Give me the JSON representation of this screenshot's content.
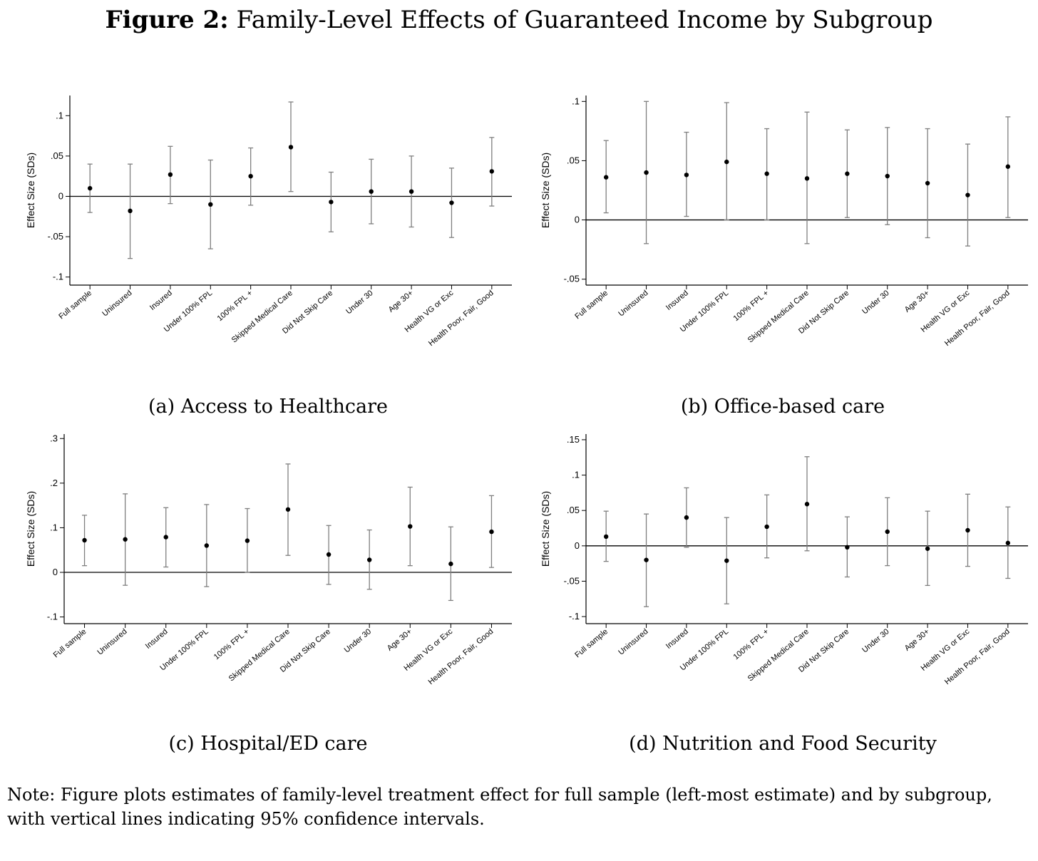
{
  "figure": {
    "title_bold": "Figure 2:",
    "title_rest": " Family-Level Effects of Guaranteed Income by Subgroup",
    "note": "Note: Figure plots estimates of family-level treatment effect for full sample (left-most estimate) and by subgroup, with vertical lines indicating 95% confidence intervals."
  },
  "colors": {
    "ci": "#7f7f7f",
    "point": "#000000",
    "axis": "#000000",
    "zero_line": "#000000"
  },
  "chart_data": [
    {
      "id": "a",
      "type": "scatter",
      "caption": "(a) Access to Healthcare",
      "ylabel": "Effect Size (SDs)",
      "ylim": [
        -0.11,
        0.125
      ],
      "yticks": [
        -0.1,
        -0.05,
        0,
        0.05,
        0.1
      ],
      "ytick_labels": [
        "-.1",
        "-.05",
        "0",
        ".05",
        ".1"
      ],
      "categories": [
        "Full sample",
        "Uninsured",
        "Insured",
        "Under 100% FPL",
        "100% FPL +",
        "Skipped Medical Care",
        "Did Not Skip Care",
        "Under 30",
        "Age 30+",
        "Health VG or Exc",
        "Health Poor, Fair, Good"
      ],
      "estimates": [
        0.01,
        -0.018,
        0.027,
        -0.01,
        0.025,
        0.061,
        -0.007,
        0.006,
        0.006,
        -0.008,
        0.031
      ],
      "ci_low": [
        -0.02,
        -0.077,
        -0.009,
        -0.065,
        -0.011,
        0.006,
        -0.044,
        -0.034,
        -0.038,
        -0.051,
        -0.012
      ],
      "ci_high": [
        0.04,
        0.04,
        0.062,
        0.045,
        0.06,
        0.117,
        0.03,
        0.046,
        0.05,
        0.035,
        0.073
      ],
      "grid": false
    },
    {
      "id": "b",
      "type": "scatter",
      "caption": "(b) Office-based care",
      "ylabel": "Effect Size (SDs)",
      "ylim": [
        -0.055,
        0.105
      ],
      "yticks": [
        -0.05,
        0,
        0.05,
        0.1
      ],
      "ytick_labels": [
        "-.05",
        "0",
        ".05",
        ".1"
      ],
      "categories": [
        "Full sample",
        "Uninsured",
        "Insured",
        "Under 100% FPL",
        "100% FPL +",
        "Skipped Medical Care",
        "Did Not Skip Care",
        "Under 30",
        "Age 30+",
        "Health VG or Exc",
        "Health Poor, Fair, Good"
      ],
      "estimates": [
        0.036,
        0.04,
        0.038,
        0.049,
        0.039,
        0.035,
        0.039,
        0.037,
        0.031,
        0.021,
        0.045
      ],
      "ci_low": [
        0.006,
        -0.02,
        0.003,
        0.0,
        0.0,
        -0.02,
        0.002,
        -0.004,
        -0.015,
        -0.022,
        0.002
      ],
      "ci_high": [
        0.067,
        0.1,
        0.074,
        0.099,
        0.077,
        0.091,
        0.076,
        0.078,
        0.077,
        0.064,
        0.087
      ],
      "grid": false
    },
    {
      "id": "c",
      "type": "scatter",
      "caption": "(c) Hospital/ED care",
      "ylabel": "Effect Size (SDs)",
      "ylim": [
        -0.115,
        0.31
      ],
      "yticks": [
        -0.1,
        0,
        0.1,
        0.2,
        0.3
      ],
      "ytick_labels": [
        "-.1",
        "0",
        ".1",
        ".2",
        ".3"
      ],
      "categories": [
        "Full sample",
        "Uninsured",
        "Insured",
        "Under 100% FPL",
        "100% FPL +",
        "Skipped Medical Care",
        "Did Not Skip Care",
        "Under 30",
        "Age 30+",
        "Health VG or Exc",
        "Health Poor, Fair, Good"
      ],
      "estimates": [
        0.072,
        0.074,
        0.079,
        0.06,
        0.071,
        0.141,
        0.04,
        0.028,
        0.103,
        0.019,
        0.091
      ],
      "ci_low": [
        0.015,
        -0.029,
        0.012,
        -0.032,
        0.0,
        0.038,
        -0.027,
        -0.038,
        0.015,
        -0.063,
        0.011
      ],
      "ci_high": [
        0.128,
        0.176,
        0.145,
        0.152,
        0.143,
        0.243,
        0.105,
        0.095,
        0.191,
        0.102,
        0.172
      ],
      "grid": false
    },
    {
      "id": "d",
      "type": "scatter",
      "caption": "(d) Nutrition and Food Security",
      "ylabel": "Effect Size (SDs)",
      "ylim": [
        -0.11,
        0.158
      ],
      "yticks": [
        -0.1,
        -0.05,
        0,
        0.05,
        0.1,
        0.15
      ],
      "ytick_labels": [
        "-.1",
        "-.05",
        "0",
        ".05",
        ".1",
        ".15"
      ],
      "categories": [
        "Full sample",
        "Uninsured",
        "Insured",
        "Under 100% FPL",
        "100% FPL +",
        "Skipped Medical Care",
        "Did Not Skip Care",
        "Under 30",
        "Age 30+",
        "Health VG or Exc",
        "Health Poor, Fair, Good"
      ],
      "estimates": [
        0.013,
        -0.02,
        0.04,
        -0.021,
        0.027,
        0.059,
        -0.002,
        0.02,
        -0.004,
        0.022,
        0.004
      ],
      "ci_low": [
        -0.022,
        -0.086,
        -0.002,
        -0.082,
        -0.017,
        -0.007,
        -0.044,
        -0.028,
        -0.056,
        -0.029,
        -0.046
      ],
      "ci_high": [
        0.049,
        0.045,
        0.082,
        0.04,
        0.072,
        0.126,
        0.041,
        0.068,
        0.049,
        0.073,
        0.055
      ],
      "grid": false
    }
  ]
}
